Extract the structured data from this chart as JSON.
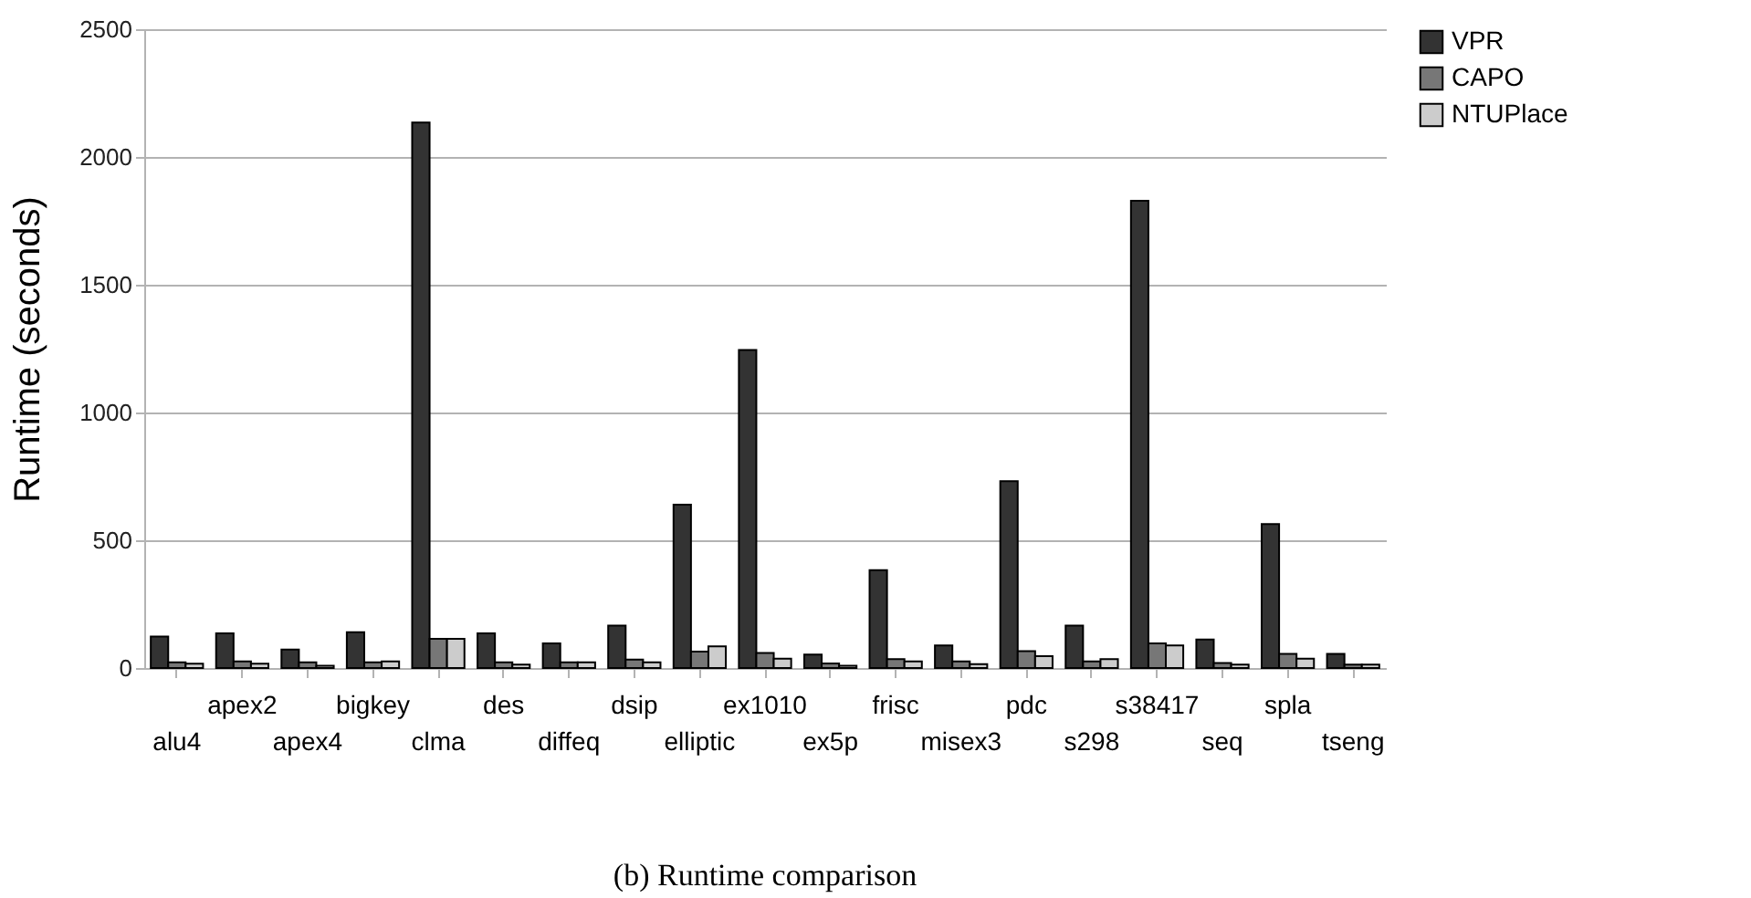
{
  "chart_data": {
    "type": "bar",
    "title": "(b) Runtime comparison",
    "ylabel": "Runtime (seconds)",
    "categories": [
      "alu4",
      "apex2",
      "apex4",
      "bigkey",
      "clma",
      "des",
      "diffeq",
      "dsip",
      "elliptic",
      "ex1010",
      "ex5p",
      "frisc",
      "misex3",
      "pdc",
      "s298",
      "s38417",
      "seq",
      "spla",
      "tseng"
    ],
    "series": [
      {
        "name": "VPR",
        "color": "#333333",
        "values": [
          123,
          136,
          72,
          140,
          2135,
          136,
          96,
          166,
          639,
          1245,
          53,
          383,
          88,
          731,
          166,
          1829,
          112,
          563,
          55
        ]
      },
      {
        "name": "CAPO",
        "color": "#777777",
        "values": [
          22,
          26,
          22,
          22,
          114,
          22,
          22,
          33,
          64,
          59,
          18,
          35,
          26,
          66,
          26,
          96,
          20,
          55,
          13
        ]
      },
      {
        "name": "NTUPlace",
        "color": "#cccccc",
        "values": [
          17,
          17,
          9,
          26,
          114,
          13,
          22,
          22,
          85,
          37,
          9,
          26,
          15,
          46,
          35,
          88,
          13,
          37,
          13
        ]
      }
    ],
    "ylim": [
      0,
      2500
    ],
    "yticks": [
      0,
      500,
      1000,
      1500,
      2000,
      2500
    ],
    "grid": "y",
    "legend": "right"
  }
}
